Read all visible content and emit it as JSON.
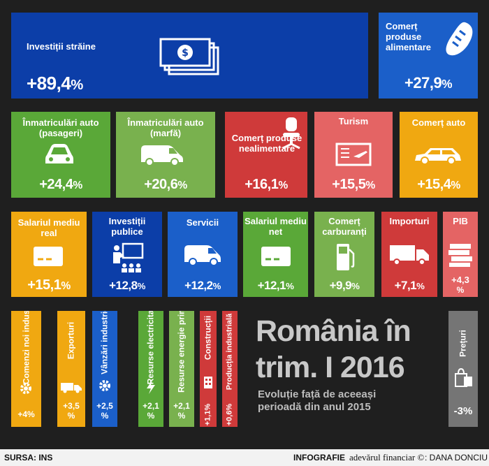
{
  "tiles": {
    "investitii_straine": {
      "label": "Investiții străine",
      "value": "+89,4",
      "unit": "%"
    },
    "comert_alimentare": {
      "label": "Comerț produse alimentare",
      "value": "+27,9",
      "unit": "%"
    },
    "inmatriculari_pasageri": {
      "label": "Înmatriculări auto (pasageri)",
      "value": "+24,4",
      "unit": "%"
    },
    "inmatriculari_marfa": {
      "label": "Înmatriculări auto (marfă)",
      "value": "+20,6",
      "unit": "%"
    },
    "comert_nealimentare": {
      "label": "Comerț produse nealimentare",
      "value": "+16,1",
      "unit": "%"
    },
    "turism": {
      "label": "Turism",
      "value": "+15,5",
      "unit": "%"
    },
    "comert_auto": {
      "label": "Comerț auto",
      "value": "+15,4",
      "unit": "%"
    },
    "salariul_real": {
      "label": "Salariul mediu real",
      "value": "+15,1",
      "unit": "%"
    },
    "investitii_publice": {
      "label": "Investiții publice",
      "value": "+12,8",
      "unit": "%"
    },
    "servicii": {
      "label": "Servicii",
      "value": "+12,2",
      "unit": "%"
    },
    "salariul_net": {
      "label": "Salariul mediu net",
      "value": "+12,1",
      "unit": "%"
    },
    "comert_carburanti": {
      "label": "Comerț carburanți",
      "value": "+9,9",
      "unit": "%"
    },
    "importuri": {
      "label": "Importuri",
      "value": "+7,1",
      "unit": "%"
    },
    "pib": {
      "label": "PIB",
      "value": "+4,3",
      "unit": "%"
    },
    "comenzi": {
      "label": "Comenzi noi industrie",
      "value": "+4",
      "unit": "%"
    },
    "exporturi": {
      "label": "Exporturi",
      "value": "+3,5",
      "unit": "%"
    },
    "vanzari": {
      "label": "Vânzări industrie",
      "value": "+2,5",
      "unit": "%"
    },
    "resurse_electricitate": {
      "label": "Resurse electricitate",
      "value": "+2,1",
      "unit": "%"
    },
    "resurse_energie": {
      "label": "Resurse energie primară",
      "value": "+2,1",
      "unit": "%"
    },
    "constructii": {
      "label": "Construcții",
      "value": "+1,1",
      "unit": "%"
    },
    "productia": {
      "label": "Producția industrială",
      "value": "+0,6",
      "unit": "%"
    },
    "preturi": {
      "label": "Prețuri",
      "value": "-3",
      "unit": "%"
    }
  },
  "headline": {
    "line1": "România în",
    "line2": "trim. I 2016",
    "sub1": "Evoluție față de aceeași",
    "sub2": "perioadă din anul 2015"
  },
  "footer": {
    "source": "SURSA: INS",
    "infografie": "INFOGRAFIE",
    "brand": "adevărul financiar ©",
    "author": ": DANA DONCIU"
  },
  "colors": {
    "blue": "#0c3ea8",
    "green": "#5aa838",
    "red": "#cf3a3a",
    "orange": "#f0a811",
    "background": "#1f1f1f"
  }
}
